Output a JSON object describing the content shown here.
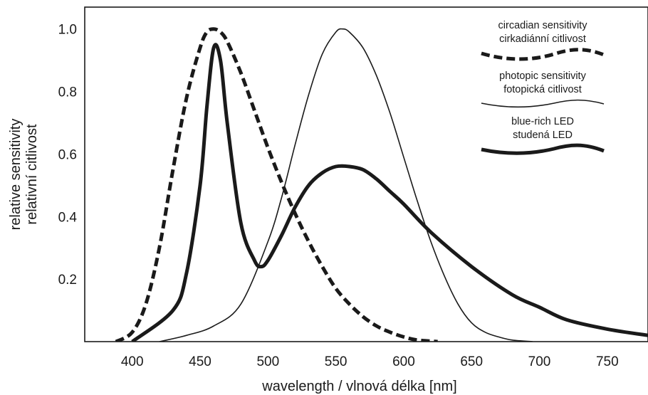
{
  "chart_data": {
    "type": "line",
    "xlabel": "wavelength / vlnová délka [nm]",
    "ylabel_lines": [
      "relative sensitivity",
      "relativní citlivost"
    ],
    "xlim": [
      365,
      780
    ],
    "ylim": [
      0,
      1.07
    ],
    "x_ticks": [
      "400",
      "450",
      "500",
      "550",
      "600",
      "650",
      "700",
      "750"
    ],
    "y_ticks": [
      "0.2",
      "0.4",
      "0.6",
      "0.8",
      "1.0"
    ],
    "grid": false,
    "legend_position": "top-right",
    "series": [
      {
        "legend_lines": [
          "circadian sensitivity",
          "cirkadiánní citlivost"
        ],
        "style": "dashed-thick",
        "color": "#1a1a1a",
        "x": [
          388,
          400,
          410,
          420,
          430,
          440,
          450,
          455,
          460,
          465,
          470,
          480,
          490,
          500,
          510,
          520,
          530,
          540,
          550,
          560,
          570,
          580,
          590,
          600,
          610,
          625
        ],
        "y": [
          0.0,
          0.03,
          0.12,
          0.3,
          0.55,
          0.78,
          0.94,
          0.99,
          1.0,
          0.99,
          0.96,
          0.86,
          0.74,
          0.62,
          0.51,
          0.41,
          0.32,
          0.24,
          0.17,
          0.12,
          0.08,
          0.05,
          0.03,
          0.015,
          0.005,
          0.0
        ]
      },
      {
        "legend_lines": [
          "photopic sensitivity",
          "fotopická citlivost"
        ],
        "style": "thin",
        "color": "#1a1a1a",
        "x": [
          420,
          440,
          460,
          480,
          500,
          510,
          520,
          530,
          540,
          550,
          555,
          560,
          570,
          580,
          590,
          600,
          610,
          620,
          630,
          640,
          650,
          660,
          670,
          680,
          695
        ],
        "y": [
          0.0,
          0.02,
          0.05,
          0.12,
          0.32,
          0.46,
          0.63,
          0.79,
          0.92,
          0.99,
          1.0,
          0.99,
          0.94,
          0.85,
          0.73,
          0.59,
          0.45,
          0.32,
          0.21,
          0.12,
          0.06,
          0.03,
          0.015,
          0.005,
          0.0
        ]
      },
      {
        "legend_lines": [
          "blue-rich LED",
          "studená LED"
        ],
        "style": "thick",
        "color": "#1a1a1a",
        "x": [
          400,
          430,
          440,
          450,
          455,
          460,
          465,
          470,
          480,
          490,
          495,
          500,
          510,
          520,
          530,
          540,
          550,
          560,
          570,
          580,
          590,
          600,
          620,
          650,
          680,
          700,
          720,
          750,
          780
        ],
        "y": [
          0.0,
          0.1,
          0.22,
          0.5,
          0.75,
          0.94,
          0.9,
          0.7,
          0.38,
          0.26,
          0.24,
          0.26,
          0.34,
          0.43,
          0.5,
          0.54,
          0.56,
          0.56,
          0.55,
          0.52,
          0.48,
          0.44,
          0.35,
          0.24,
          0.15,
          0.11,
          0.07,
          0.04,
          0.02
        ]
      }
    ]
  }
}
